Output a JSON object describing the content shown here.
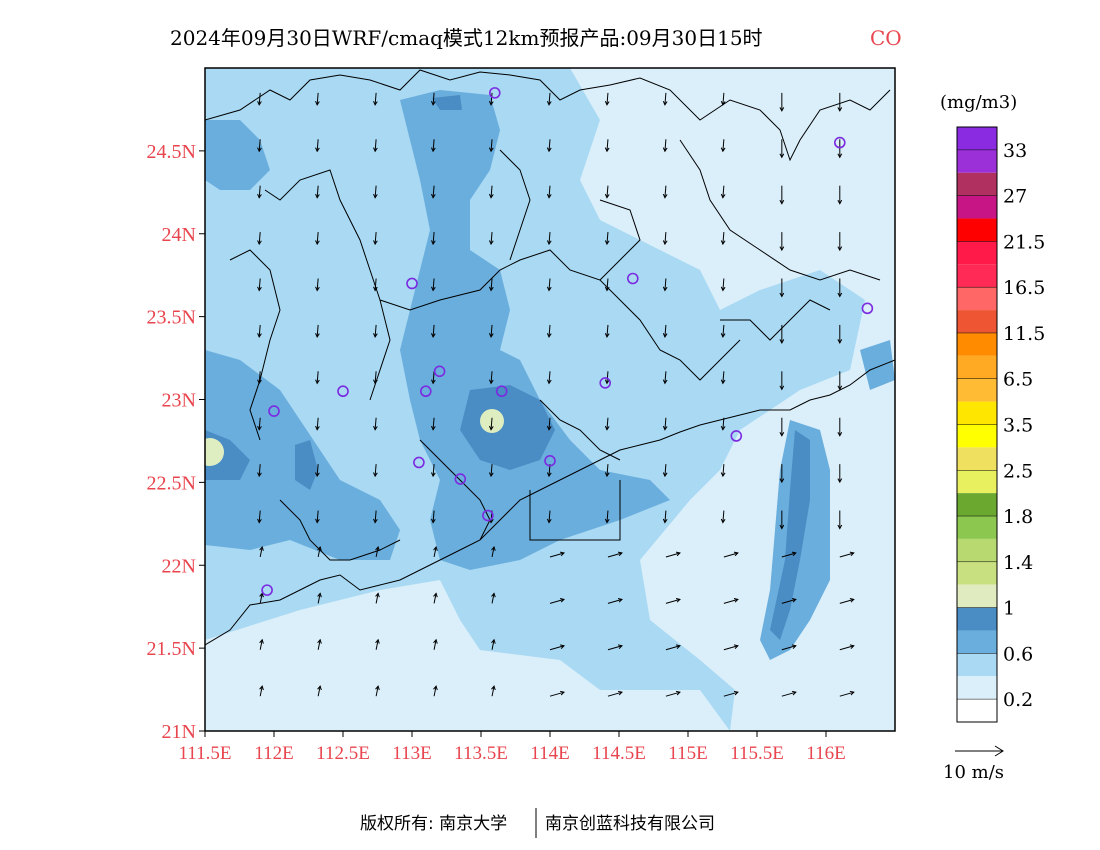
{
  "title": {
    "main": "2024年09月30日WRF/cmaq模式12km预报产品:09月30日15时",
    "species": "CO"
  },
  "colors": {
    "tick_red": "#e8454e",
    "sea_light": "#dbeffa",
    "level_0_6": "#a9d9f3",
    "level_0_8": "#6aaedd",
    "level_1_0": "#4a8cc4",
    "level_1_2": "#dfeec0",
    "level_2_0": "#eef29a",
    "station_marker": "#7b2be0",
    "coastline": "#000000"
  },
  "map": {
    "lat_ticks": [
      "24.5N",
      "24N",
      "23.5N",
      "23N",
      "22.5N",
      "22N",
      "21.5N",
      "21N"
    ],
    "lon_ticks": [
      "111.5E",
      "112E",
      "112.5E",
      "113E",
      "113.5E",
      "114E",
      "114.5E",
      "115E",
      "115.5E",
      "116E"
    ],
    "extent": {
      "lon_min": 111.5,
      "lon_max": 116.5,
      "lat_min": 21.0,
      "lat_max": 25.0
    },
    "stations": [
      {
        "lon": 113.6,
        "lat": 24.85
      },
      {
        "lon": 116.1,
        "lat": 24.55
      },
      {
        "lon": 113.0,
        "lat": 23.7
      },
      {
        "lon": 114.6,
        "lat": 23.73
      },
      {
        "lon": 116.3,
        "lat": 23.55
      },
      {
        "lon": 112.5,
        "lat": 23.05
      },
      {
        "lon": 112.0,
        "lat": 22.93
      },
      {
        "lon": 113.1,
        "lat": 23.05
      },
      {
        "lon": 113.2,
        "lat": 23.17
      },
      {
        "lon": 113.65,
        "lat": 23.05
      },
      {
        "lon": 114.4,
        "lat": 23.1
      },
      {
        "lon": 113.05,
        "lat": 22.62
      },
      {
        "lon": 113.35,
        "lat": 22.52
      },
      {
        "lon": 113.55,
        "lat": 22.3
      },
      {
        "lon": 114.0,
        "lat": 22.63
      },
      {
        "lon": 115.35,
        "lat": 22.78
      },
      {
        "lon": 111.95,
        "lat": 21.85
      }
    ]
  },
  "colorbar": {
    "unit": "(mg/m3)",
    "labels": [
      "33",
      "27",
      "21.5",
      "16.5",
      "11.5",
      "6.5",
      "3.5",
      "2.5",
      "1.8",
      "1.4",
      "1",
      "0.6",
      "0.2"
    ],
    "colors": [
      "#8a2be2",
      "#9b30d8",
      "#b03060",
      "#c71585",
      "#ff0000",
      "#ff1a4a",
      "#ff2a55",
      "#ff6666",
      "#ee5533",
      "#ff8c00",
      "#ffaa22",
      "#ffbb33",
      "#ffe600",
      "#ffff00",
      "#f0e060",
      "#e8f060",
      "#6aa830",
      "#8cc850",
      "#b8d870",
      "#c8e080",
      "#e0ecc0",
      "#4a8cc4",
      "#6aaedd",
      "#a9d9f3",
      "#dbeffa",
      "#ffffff"
    ]
  },
  "wind_legend": {
    "label": "10 m/s"
  },
  "footer": {
    "left": "版权所有: 南京大学",
    "right": "南京创蓝科技有限公司"
  }
}
